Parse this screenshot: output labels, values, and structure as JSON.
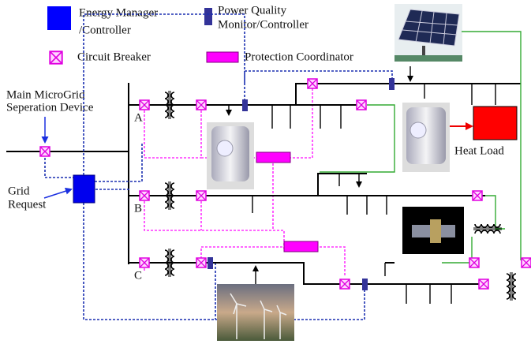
{
  "legend": [
    {
      "label": [
        "Energy Manager",
        "/Controller"
      ]
    },
    {
      "label": [
        "Power Quality",
        "Monitor/Controller"
      ]
    },
    {
      "label": [
        "Circuit Breaker"
      ]
    },
    {
      "label": [
        "Protection Coordinator"
      ]
    }
  ],
  "labels": {
    "separation_device": [
      "Main MicroGrid",
      "Seperation Device"
    ],
    "grid_request": [
      "Grid",
      "Request"
    ],
    "heat_load": "Heat Load",
    "feeders": [
      "A",
      "B",
      "C"
    ]
  }
}
